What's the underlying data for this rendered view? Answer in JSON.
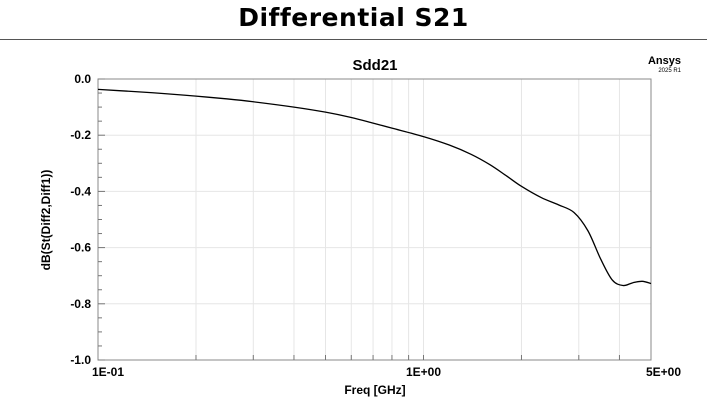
{
  "slide": {
    "title": "Differential S21"
  },
  "watermark": {
    "brand": "Ansys",
    "version": "2025 R1"
  },
  "chart_data": {
    "type": "line",
    "title": "Sdd21",
    "xlabel": "Freq [GHz]",
    "ylabel": "dB(St(Diff2,Diff1))",
    "xscale": "log",
    "xlim": [
      0.1,
      5
    ],
    "ylim": [
      -1.0,
      0.0
    ],
    "grid": true,
    "x_ticks": [
      {
        "value": 0.1,
        "label": "1E-01"
      },
      {
        "value": 1,
        "label": "1E+00"
      },
      {
        "value": 5,
        "label": "5E+00"
      }
    ],
    "y_ticks": [
      {
        "value": 0.0,
        "label": "0.0"
      },
      {
        "value": -0.2,
        "label": "-0.2"
      },
      {
        "value": -0.4,
        "label": "-0.4"
      },
      {
        "value": -0.6,
        "label": "-0.6"
      },
      {
        "value": -0.8,
        "label": "-0.8"
      },
      {
        "value": -1.0,
        "label": "-1.0"
      }
    ],
    "series": [
      {
        "color": "#000000",
        "x": [
          0.1,
          0.13,
          0.16,
          0.2,
          0.25,
          0.3,
          0.4,
          0.5,
          0.6,
          0.7,
          0.8,
          1.0,
          1.2,
          1.4,
          1.6,
          1.8,
          2.0,
          2.3,
          2.6,
          2.9,
          3.2,
          3.5,
          3.8,
          4.1,
          4.4,
          4.7,
          5.0
        ],
        "y": [
          -0.037,
          -0.045,
          -0.052,
          -0.061,
          -0.071,
          -0.081,
          -0.1,
          -0.118,
          -0.137,
          -0.157,
          -0.175,
          -0.205,
          -0.235,
          -0.268,
          -0.305,
          -0.345,
          -0.382,
          -0.422,
          -0.448,
          -0.475,
          -0.54,
          -0.64,
          -0.715,
          -0.735,
          -0.725,
          -0.72,
          -0.728
        ]
      }
    ]
  }
}
